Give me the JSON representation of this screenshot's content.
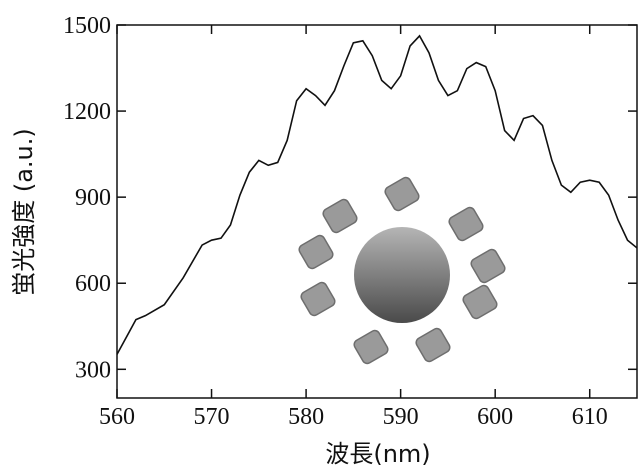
{
  "chart_data": {
    "type": "line",
    "x_label": "波長(nm)",
    "y_label": "蛍光強度 (a.u.)",
    "x": [
      560,
      562,
      563,
      565,
      567,
      569,
      570,
      571,
      572,
      573,
      574,
      575,
      576,
      577,
      578,
      579,
      580,
      581,
      582,
      583,
      584,
      585,
      586,
      587,
      588,
      589,
      590,
      591,
      592,
      593,
      594,
      595,
      596,
      597,
      598,
      599,
      600,
      601,
      602,
      603,
      604,
      605,
      606,
      607,
      608,
      609,
      610,
      611,
      612,
      613,
      614,
      615
    ],
    "series": [
      {
        "color": "#111111",
        "values": [
          352,
          473,
          487,
          525,
          619,
          733,
          750,
          757,
          803,
          907,
          987,
          1028,
          1011,
          1021,
          1098,
          1236,
          1278,
          1254,
          1220,
          1271,
          1358,
          1438,
          1445,
          1393,
          1307,
          1278,
          1323,
          1427,
          1462,
          1403,
          1307,
          1254,
          1271,
          1348,
          1369,
          1355,
          1271,
          1132,
          1098,
          1174,
          1184,
          1150,
          1028,
          942,
          917,
          952,
          959,
          952,
          907,
          820,
          750,
          723
        ]
      }
    ],
    "xlim": [
      560,
      615
    ],
    "xticks": [
      560,
      570,
      580,
      590,
      600,
      610
    ],
    "ylim": [
      200,
      1500
    ],
    "yticks": [
      300,
      600,
      900,
      1200,
      1500
    ]
  }
}
